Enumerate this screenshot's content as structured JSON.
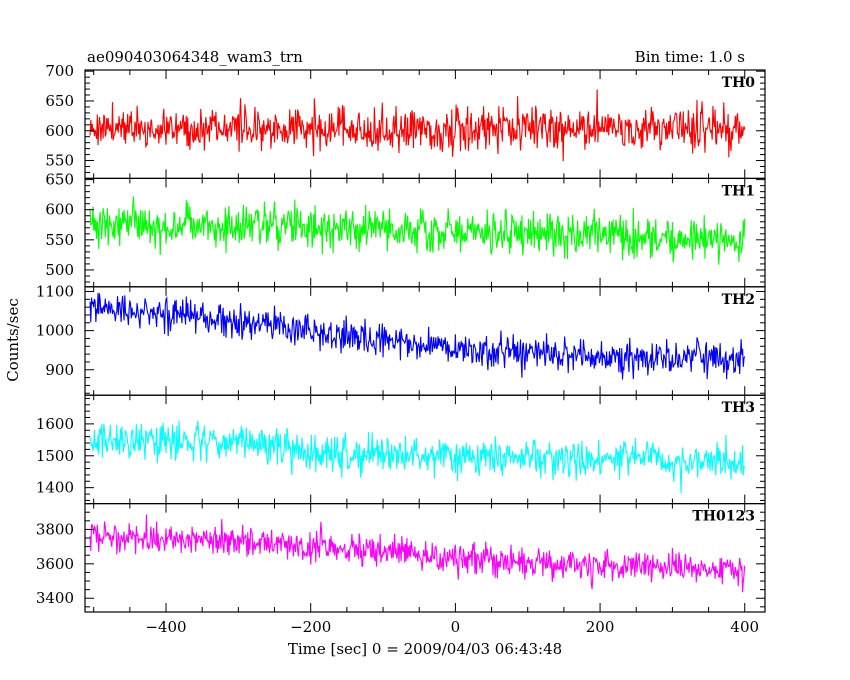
{
  "header": {
    "title": "ae090403064348_wam3_trn",
    "bin_time": "Bin time: 1.0 s"
  },
  "axes": {
    "xlabel": "Time [sec] 0 = 2009/04/03 06:43:48",
    "ylabel": "Counts/sec"
  },
  "chart_data": {
    "type": "line",
    "title": "ae090403064348_wam3_trn",
    "xlabel": "Time [sec] 0 = 2009/04/03 06:43:48",
    "ylabel": "Counts/sec",
    "xlim": [
      -512,
      428
    ],
    "x_ticks": [
      -400,
      -200,
      0,
      200,
      400
    ],
    "x_range_data": [
      -505,
      400
    ],
    "bin_time_s": 1.0,
    "panels": [
      {
        "name": "TH0",
        "color": "#ff0000",
        "ylim": [
          520,
          702
        ],
        "y_ticks": [
          550,
          600,
          650,
          700
        ],
        "trend": [
          [
            -505,
            605
          ],
          [
            0,
            603
          ],
          [
            400,
            605
          ]
        ],
        "noise_sd": 25,
        "spike_max": 705,
        "spike_min": 525
      },
      {
        "name": "TH1",
        "color": "#00ff00",
        "ylim": [
          472,
          652
        ],
        "y_ticks": [
          500,
          550,
          600,
          650
        ],
        "trend": [
          [
            -505,
            578
          ],
          [
            -300,
            575
          ],
          [
            0,
            562
          ],
          [
            400,
            550
          ]
        ],
        "noise_sd": 25,
        "spike_max": 650,
        "spike_min": 480
      },
      {
        "name": "TH2",
        "color": "#0000ff",
        "ylim": [
          835,
          1112
        ],
        "y_ticks": [
          900,
          1000,
          1100
        ],
        "trend": [
          [
            -505,
            1060
          ],
          [
            -400,
            1045
          ],
          [
            -200,
            1000
          ],
          [
            0,
            950
          ],
          [
            200,
            935
          ],
          [
            400,
            925
          ]
        ],
        "noise_sd": 30,
        "spike_max": 1112,
        "spike_min": 840
      },
      {
        "name": "TH3",
        "color": "#00ffff",
        "ylim": [
          1350,
          1690
        ],
        "y_ticks": [
          1400,
          1500,
          1600
        ],
        "trend": [
          [
            -505,
            1550
          ],
          [
            -300,
            1545
          ],
          [
            -200,
            1510
          ],
          [
            0,
            1500
          ],
          [
            400,
            1480
          ]
        ],
        "noise_sd": 40,
        "spike_max": 1690,
        "spike_min": 1360
      },
      {
        "name": "TH0123",
        "color": "#ff00ff",
        "ylim": [
          3320,
          3950
        ],
        "y_ticks": [
          3400,
          3600,
          3800
        ],
        "trend": [
          [
            -505,
            3765
          ],
          [
            -300,
            3730
          ],
          [
            -100,
            3670
          ],
          [
            0,
            3630
          ],
          [
            200,
            3590
          ],
          [
            400,
            3565
          ]
        ],
        "noise_sd": 65,
        "spike_max": 3940,
        "spike_min": 3340
      }
    ]
  }
}
